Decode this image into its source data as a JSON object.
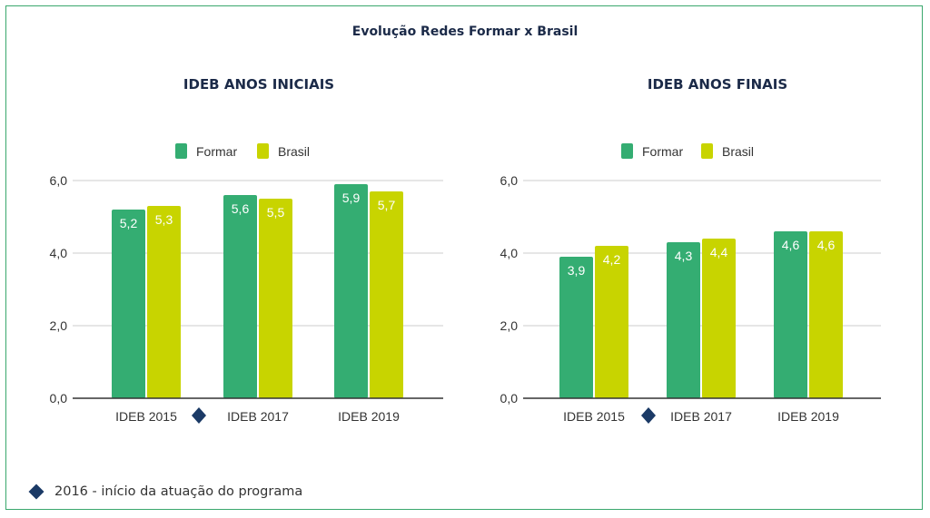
{
  "title": "Evolução Redes Formar x Brasil",
  "colors": {
    "formar": "#34ad72",
    "brasil": "#c8d400",
    "marker": "#1b3a66",
    "border": "#3aa76d",
    "title": "#1b2a48"
  },
  "legend": {
    "formar": "Formar",
    "brasil": "Brasil"
  },
  "footnote": "2016 - início da atuação do programa",
  "chart_data": [
    {
      "type": "bar",
      "title": "IDEB ANOS INICIAIS",
      "categories": [
        "IDEB 2015",
        "IDEB 2017",
        "IDEB 2019"
      ],
      "series": [
        {
          "name": "Formar",
          "values": [
            5.2,
            5.6,
            5.9
          ],
          "labels": [
            "5,2",
            "5,6",
            "5,9"
          ]
        },
        {
          "name": "Brasil",
          "values": [
            5.3,
            5.5,
            5.7
          ],
          "labels": [
            "5,3",
            "5,5",
            "5,7"
          ]
        }
      ],
      "ylim": [
        0,
        6
      ],
      "yticks": [
        0,
        2,
        4,
        6
      ],
      "ytick_labels": [
        "0,0",
        "2,0",
        "4,0",
        "6,0"
      ],
      "grid": true,
      "legend_position": "top",
      "annotation_marker": "between IDEB 2015 and IDEB 2017"
    },
    {
      "type": "bar",
      "title": "IDEB ANOS FINAIS",
      "categories": [
        "IDEB 2015",
        "IDEB 2017",
        "IDEB 2019"
      ],
      "series": [
        {
          "name": "Formar",
          "values": [
            3.9,
            4.3,
            4.6
          ],
          "labels": [
            "3,9",
            "4,3",
            "4,6"
          ]
        },
        {
          "name": "Brasil",
          "values": [
            4.2,
            4.4,
            4.6
          ],
          "labels": [
            "4,2",
            "4,4",
            "4,6"
          ]
        }
      ],
      "ylim": [
        0,
        6
      ],
      "yticks": [
        0,
        2,
        4,
        6
      ],
      "ytick_labels": [
        "0,0",
        "2,0",
        "4,0",
        "6,0"
      ],
      "grid": true,
      "legend_position": "top",
      "annotation_marker": "between IDEB 2015 and IDEB 2017"
    }
  ]
}
